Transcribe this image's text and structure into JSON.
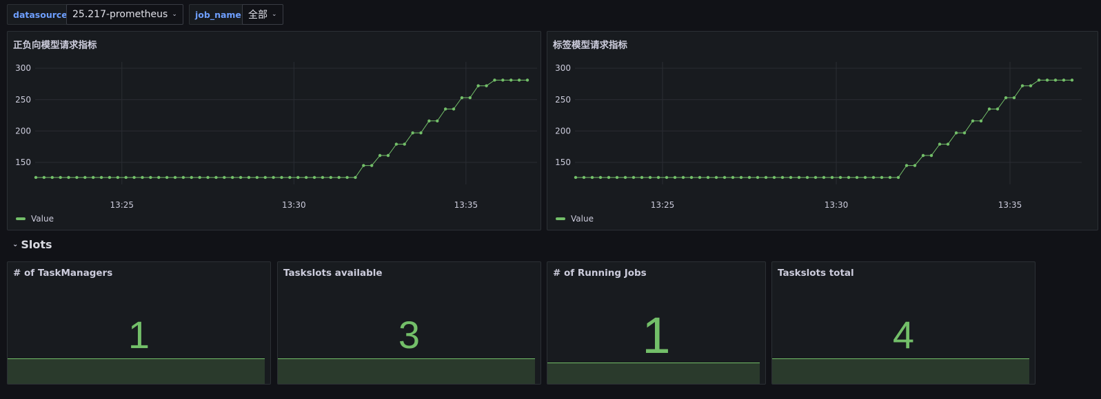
{
  "variables": [
    {
      "label": "datasource",
      "value": "25.217-prometheus"
    },
    {
      "label": "job_name",
      "value": "全部"
    }
  ],
  "colors": {
    "series": "#73bf69",
    "variable_label": "#6e9fff",
    "panel_bg": "#181b1f",
    "page_bg": "#111217"
  },
  "icons": {
    "dropdown": "chevron-down-icon",
    "row_toggle": "chevron-down-icon"
  },
  "timeseries_panels": [
    {
      "title": "正负向模型请求指标",
      "legend": "Value"
    },
    {
      "title": "标签模型请求指标",
      "legend": "Value"
    }
  ],
  "chart_data": [
    {
      "type": "line",
      "title": "正负向模型请求指标",
      "x_ticks": [
        "13:25",
        "13:30",
        "13:35"
      ],
      "y_ticks": [
        150,
        200,
        250,
        300
      ],
      "ylim": [
        115,
        310
      ],
      "grid": true,
      "legend_placement": "bottom-left",
      "series": [
        {
          "name": "Value",
          "color": "#73bf69",
          "values": [
            126,
            126,
            126,
            126,
            126,
            126,
            126,
            126,
            126,
            126,
            126,
            126,
            126,
            126,
            126,
            126,
            126,
            126,
            126,
            126,
            126,
            126,
            126,
            126,
            126,
            126,
            126,
            126,
            126,
            126,
            126,
            126,
            126,
            126,
            126,
            126,
            126,
            126,
            126,
            126,
            145,
            145,
            161,
            161,
            179,
            179,
            197,
            197,
            216,
            216,
            235,
            235,
            253,
            253,
            272,
            272,
            281,
            281,
            281,
            281,
            281
          ]
        }
      ]
    },
    {
      "type": "line",
      "title": "标签模型请求指标",
      "x_ticks": [
        "13:25",
        "13:30",
        "13:35"
      ],
      "y_ticks": [
        150,
        200,
        250,
        300
      ],
      "ylim": [
        115,
        310
      ],
      "grid": true,
      "legend_placement": "bottom-left",
      "series": [
        {
          "name": "Value",
          "color": "#73bf69",
          "values": [
            126,
            126,
            126,
            126,
            126,
            126,
            126,
            126,
            126,
            126,
            126,
            126,
            126,
            126,
            126,
            126,
            126,
            126,
            126,
            126,
            126,
            126,
            126,
            126,
            126,
            126,
            126,
            126,
            126,
            126,
            126,
            126,
            126,
            126,
            126,
            126,
            126,
            126,
            126,
            126,
            145,
            145,
            161,
            161,
            179,
            179,
            197,
            197,
            216,
            216,
            235,
            235,
            253,
            253,
            272,
            272,
            281,
            281,
            281,
            281,
            281
          ]
        }
      ]
    }
  ],
  "row": {
    "title": "Slots"
  },
  "stats": [
    {
      "title": "# of TaskManagers",
      "value": "1",
      "spark_level": 0.2
    },
    {
      "title": "Taskslots available",
      "value": "3",
      "spark_level": 0.2
    },
    {
      "title": "# of Running Jobs",
      "value": "1",
      "spark_level": 0.17
    },
    {
      "title": "Taskslots total",
      "value": "4",
      "spark_level": 0.2
    }
  ]
}
